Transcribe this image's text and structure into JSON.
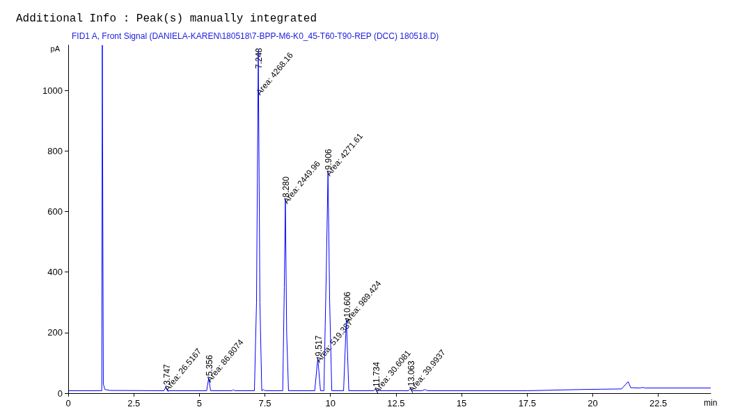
{
  "chart_data": {
    "type": "line",
    "title": "Additional Info : Peak(s) manually integrated",
    "subtitle": "FID1 A, Front Signal (DANIELA-KAREN\\180518\\7-BPP-M6-K0_45-T60-T90-REP (DCC) 180518.D)",
    "xlabel": "min",
    "ylabel": "pA",
    "xlim": [
      0,
      24.5
    ],
    "xticks": [
      0,
      2.5,
      5,
      7.5,
      10,
      12.5,
      15,
      17.5,
      20,
      22.5
    ],
    "ylim": [
      0,
      1150
    ],
    "yticks": [
      0,
      200,
      400,
      600,
      800,
      1000
    ],
    "grid": false,
    "marker": "none",
    "line_style": "solid",
    "series": [
      {
        "color": "#0000ff",
        "x": [
          0,
          1.2,
          1.28,
          1.3,
          1.34,
          1.4,
          1.6,
          3.65,
          3.72,
          3.78,
          5.28,
          5.356,
          5.43,
          6.25,
          6.3,
          6.35,
          7.1,
          7.18,
          7.248,
          7.31,
          7.38,
          7.45,
          7.5,
          8.18,
          8.24,
          8.28,
          8.33,
          8.4,
          9.4,
          9.517,
          9.62,
          9.75,
          9.84,
          9.906,
          9.97,
          10.05,
          10.5,
          10.606,
          10.7,
          11.65,
          11.734,
          11.8,
          12.98,
          13.063,
          13.15,
          13.5,
          13.6,
          13.7,
          17.5,
          18.5,
          19.5,
          20.3,
          21.1,
          21.35,
          21.45,
          21.8,
          21.9,
          22,
          24.5
        ],
        "values": [
          8,
          8,
          8,
          1150,
          30,
          12,
          9,
          8,
          20,
          8,
          8,
          50,
          8,
          8,
          11,
          8,
          8,
          300,
          1130,
          300,
          8,
          12,
          8,
          8,
          350,
          640,
          200,
          8,
          8,
          115,
          8,
          8,
          400,
          731,
          300,
          8,
          8,
          244,
          8,
          8,
          14,
          8,
          8,
          16,
          8,
          8,
          12,
          8,
          8,
          10,
          12,
          13,
          14,
          38,
          18,
          17,
          19,
          17,
          17
        ]
      }
    ],
    "annotations": [
      {
        "text": "3.747",
        "x": 3.747,
        "y": 20
      },
      {
        "text": "Area: 26.5167",
        "x": 3.747,
        "y": 20
      },
      {
        "text": "5.356",
        "x": 5.356,
        "y": 50
      },
      {
        "text": "Area: 86.8074",
        "x": 5.356,
        "y": 50
      },
      {
        "text": "7.248",
        "x": 7.248,
        "y": 1130
      },
      {
        "text": "Area: 4268.16",
        "x": 7.248,
        "y": 1130
      },
      {
        "text": "8.280",
        "x": 8.28,
        "y": 640
      },
      {
        "text": "Area: 2449.96",
        "x": 8.28,
        "y": 640
      },
      {
        "text": "9.517",
        "x": 9.517,
        "y": 115
      },
      {
        "text": "Area: 519.387",
        "x": 9.517,
        "y": 115
      },
      {
        "text": "9.906",
        "x": 9.906,
        "y": 731
      },
      {
        "text": "Area: 4271.61",
        "x": 9.906,
        "y": 731
      },
      {
        "text": "10.606",
        "x": 10.606,
        "y": 244
      },
      {
        "text": "Area: 989.424",
        "x": 10.606,
        "y": 244
      },
      {
        "text": "11.734",
        "x": 11.734,
        "y": 14
      },
      {
        "text": "Area: 30.6081",
        "x": 11.734,
        "y": 14
      },
      {
        "text": "13.063",
        "x": 13.063,
        "y": 16
      },
      {
        "text": "Area: 39.9937",
        "x": 13.063,
        "y": 16
      }
    ]
  }
}
